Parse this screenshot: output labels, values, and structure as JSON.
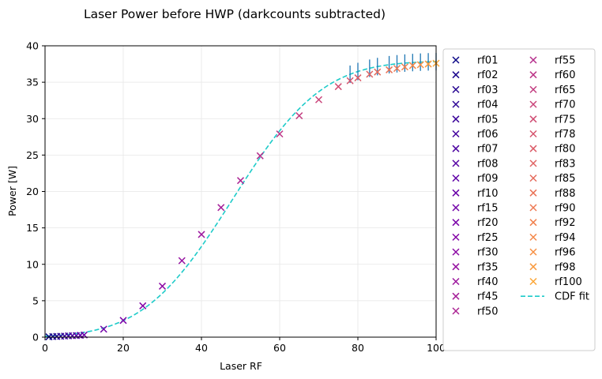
{
  "chart_data": {
    "type": "scatter",
    "title": "Laser Power before HWP (darkcounts subtracted)",
    "xlabel": "Laser RF",
    "ylabel": "Power [W]",
    "xlim": [
      0,
      100
    ],
    "ylim": [
      0,
      40
    ],
    "xticks": [
      0,
      20,
      40,
      60,
      80,
      100
    ],
    "yticks": [
      0,
      5,
      10,
      15,
      20,
      25,
      30,
      35,
      40
    ],
    "grid": true,
    "legend_position": "outside-right",
    "series": [
      {
        "name": "rf01",
        "x": 1,
        "y": 0.05,
        "color": "#0d0887"
      },
      {
        "name": "rf02",
        "x": 2,
        "y": 0.08,
        "color": "#1b068d"
      },
      {
        "name": "rf03",
        "x": 3,
        "y": 0.1,
        "color": "#260591"
      },
      {
        "name": "rf04",
        "x": 4,
        "y": 0.12,
        "color": "#2f0596"
      },
      {
        "name": "rf05",
        "x": 5,
        "y": 0.15,
        "color": "#3a049a"
      },
      {
        "name": "rf06",
        "x": 6,
        "y": 0.18,
        "color": "#43039e"
      },
      {
        "name": "rf07",
        "x": 7,
        "y": 0.2,
        "color": "#4c02a1"
      },
      {
        "name": "rf08",
        "x": 8,
        "y": 0.22,
        "color": "#5601a4"
      },
      {
        "name": "rf09",
        "x": 9,
        "y": 0.25,
        "color": "#5f00a7"
      },
      {
        "name": "rf10",
        "x": 10,
        "y": 0.3,
        "color": "#6800a8"
      },
      {
        "name": "rf15",
        "x": 15,
        "y": 1.1,
        "color": "#7201a8"
      },
      {
        "name": "rf20",
        "x": 20,
        "y": 2.3,
        "color": "#7b02a8"
      },
      {
        "name": "rf25",
        "x": 25,
        "y": 4.3,
        "color": "#8405a7"
      },
      {
        "name": "rf30",
        "x": 30,
        "y": 7.0,
        "color": "#8d0ba5"
      },
      {
        "name": "rf35",
        "x": 35,
        "y": 10.5,
        "color": "#9511a1"
      },
      {
        "name": "rf40",
        "x": 40,
        "y": 14.1,
        "color": "#9c179e"
      },
      {
        "name": "rf45",
        "x": 45,
        "y": 17.8,
        "color": "#a51f99"
      },
      {
        "name": "rf50",
        "x": 50,
        "y": 21.5,
        "color": "#ac2694"
      },
      {
        "name": "rf55",
        "x": 55,
        "y": 24.9,
        "color": "#b52f8c"
      },
      {
        "name": "rf60",
        "x": 60,
        "y": 27.9,
        "color": "#bc3587"
      },
      {
        "name": "rf65",
        "x": 65,
        "y": 30.4,
        "color": "#c33d80"
      },
      {
        "name": "rf70",
        "x": 70,
        "y": 32.6,
        "color": "#ca457a"
      },
      {
        "name": "rf75",
        "x": 75,
        "y": 34.4,
        "color": "#d04d73"
      },
      {
        "name": "rf78",
        "x": 78,
        "y": 35.2,
        "color": "#d5546e"
      },
      {
        "name": "rf80",
        "x": 80,
        "y": 35.6,
        "color": "#db5c68"
      },
      {
        "name": "rf83",
        "x": 83,
        "y": 36.1,
        "color": "#e06363"
      },
      {
        "name": "rf85",
        "x": 85,
        "y": 36.4,
        "color": "#e56b5d"
      },
      {
        "name": "rf88",
        "x": 88,
        "y": 36.7,
        "color": "#e97257"
      },
      {
        "name": "rf90",
        "x": 90,
        "y": 36.9,
        "color": "#ed7953"
      },
      {
        "name": "rf92",
        "x": 92,
        "y": 37.1,
        "color": "#f1814d"
      },
      {
        "name": "rf94",
        "x": 94,
        "y": 37.3,
        "color": "#f48849"
      },
      {
        "name": "rf96",
        "x": 96,
        "y": 37.4,
        "color": "#f79044"
      },
      {
        "name": "rf98",
        "x": 98,
        "y": 37.5,
        "color": "#f99a3e"
      },
      {
        "name": "rf100",
        "x": 100,
        "y": 37.6,
        "color": "#fca636"
      }
    ],
    "fit": {
      "name": "CDF fit",
      "style": "dashed",
      "color": "#1ecbc9",
      "model": "normal-cdf",
      "amplitude": 37.9,
      "mean": 48,
      "sigma": 18
    },
    "error_bars": {
      "x": [
        78,
        80,
        83,
        85,
        88,
        90,
        92,
        94,
        96,
        98,
        100
      ],
      "half_height": 1.2,
      "color": "#1f77b4"
    }
  }
}
